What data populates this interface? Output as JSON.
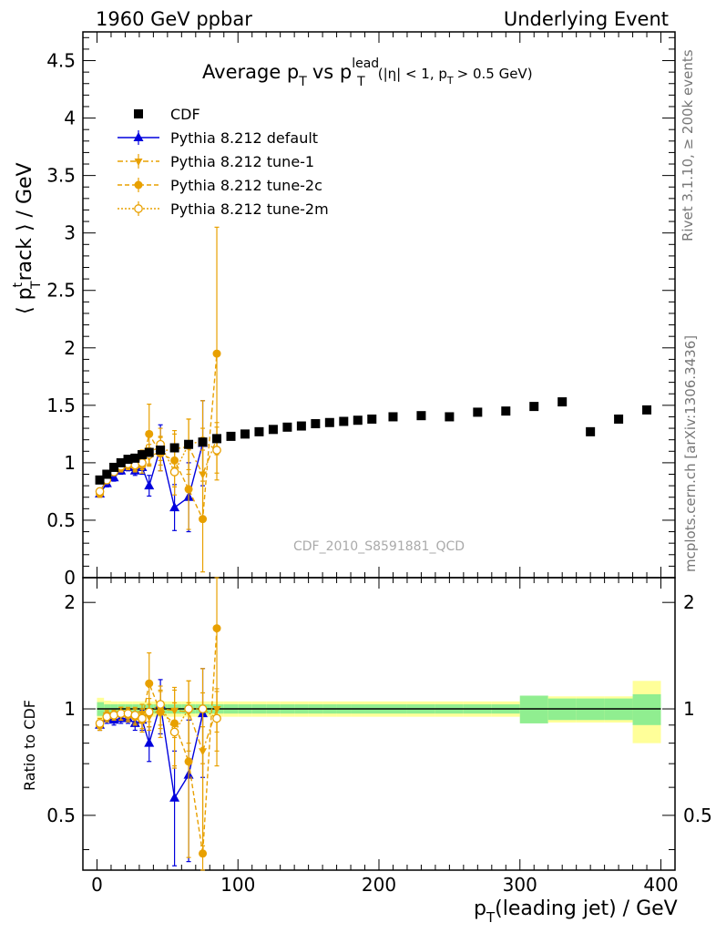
{
  "header": {
    "left": "1960 GeV ppbar",
    "right": "Underlying Event"
  },
  "side": {
    "rivet": "Rivet 3.1.10, ≥ 200k events",
    "mcplots": "mcplots.cern.ch [arXiv:1306.3436]"
  },
  "colors": {
    "data": "#000000",
    "default": "#0000dd",
    "tune": "#e8a000",
    "band_inner": "#90ee90",
    "band_outer": "#ffff99"
  },
  "chart_data": [
    {
      "type": "scatter",
      "title_parts": {
        "main": "Average p",
        "sub1": "T",
        "vs": "vs p",
        "sup": "lead",
        "sub2": "T",
        "cut1": "(|η| < 1, p",
        "sub3": "T",
        "cut2": "> 0.5 GeV)"
      },
      "ylabel_parts": {
        "open": "⟨ p",
        "sup": "t",
        "sub": "T",
        "rest": "rack ⟩ / GeV"
      },
      "watermark": "CDF_2010_S8591881_QCD",
      "xlim": [
        -10,
        410
      ],
      "ylim": [
        0,
        4.75
      ],
      "yticks": [
        "0",
        "0.5",
        "1",
        "1.5",
        "2",
        "2.5",
        "3",
        "3.5",
        "4",
        "4.5"
      ],
      "legend": [
        "CDF",
        "Pythia 8.212 default",
        "Pythia 8.212 tune-1",
        "Pythia 8.212 tune-2c",
        "Pythia 8.212 tune-2m"
      ],
      "series": [
        {
          "name": "CDF",
          "style": "square",
          "x": [
            2,
            7,
            12,
            17,
            22,
            27,
            32,
            37,
            45,
            55,
            65,
            75,
            85,
            95,
            105,
            115,
            125,
            135,
            145,
            155,
            165,
            175,
            185,
            195,
            210,
            230,
            250,
            270,
            290,
            310,
            330,
            350,
            370,
            390
          ],
          "y": [
            0.85,
            0.9,
            0.96,
            1.0,
            1.03,
            1.04,
            1.07,
            1.09,
            1.11,
            1.13,
            1.16,
            1.18,
            1.21,
            1.23,
            1.25,
            1.27,
            1.29,
            1.31,
            1.32,
            1.34,
            1.35,
            1.36,
            1.37,
            1.38,
            1.4,
            1.41,
            1.4,
            1.44,
            1.45,
            1.49,
            1.53,
            1.27,
            1.38,
            1.46
          ]
        },
        {
          "name": "Pythia 8.212 default",
          "style": "triangle-up",
          "x": [
            2,
            7,
            12,
            17,
            22,
            27,
            32,
            37,
            45,
            55,
            65,
            75
          ],
          "y": [
            0.73,
            0.82,
            0.87,
            0.93,
            0.96,
            0.93,
            0.96,
            0.8,
            1.13,
            0.61,
            0.7,
            1.17
          ],
          "err": [
            0.03,
            0.03,
            0.03,
            0.03,
            0.03,
            0.04,
            0.06,
            0.09,
            0.2,
            0.2,
            0.3,
            0.37
          ]
        },
        {
          "name": "Pythia 8.212 tune-1",
          "style": "triangle-down",
          "x": [
            2,
            7,
            12,
            17,
            22,
            27,
            32,
            37,
            45,
            55,
            65,
            75,
            85
          ],
          "y": [
            0.74,
            0.85,
            0.93,
            0.97,
            0.98,
            0.98,
            1.05,
            1.05,
            1.1,
            1.12,
            1.14,
            0.9,
            1.21
          ],
          "err": [
            0.03,
            0.03,
            0.03,
            0.04,
            0.04,
            0.05,
            0.06,
            0.08,
            0.12,
            0.16,
            0.24,
            0.4,
            0.14
          ]
        },
        {
          "name": "Pythia 8.212 tune-2c",
          "style": "circle-filled",
          "x": [
            2,
            7,
            12,
            17,
            22,
            27,
            32,
            37,
            45,
            55,
            65,
            75,
            85
          ],
          "y": [
            0.73,
            0.86,
            0.92,
            0.96,
            0.98,
            0.97,
            0.98,
            1.25,
            1.08,
            1.02,
            0.77,
            0.51,
            1.95
          ],
          "err": [
            0.03,
            0.03,
            0.03,
            0.04,
            0.04,
            0.05,
            0.07,
            0.26,
            0.15,
            0.23,
            0.35,
            0.6,
            1.1
          ]
        },
        {
          "name": "Pythia 8.212 tune-2m",
          "style": "circle-open",
          "x": [
            2,
            7,
            12,
            17,
            22,
            27,
            32,
            37,
            45,
            55,
            65,
            75,
            85
          ],
          "y": [
            0.75,
            0.85,
            0.92,
            0.97,
            0.99,
            0.98,
            1.0,
            1.07,
            1.16,
            0.92,
            1.16,
            1.19,
            1.11
          ],
          "err": [
            0.03,
            0.03,
            0.03,
            0.04,
            0.04,
            0.05,
            0.06,
            0.09,
            0.14,
            0.2,
            0.22,
            0.35,
            0.2
          ]
        }
      ]
    },
    {
      "type": "scatter",
      "ylabel": "Ratio to CDF",
      "xlabel_parts": {
        "main": "p",
        "sub": "T",
        "rest": "(leading jet) / GeV"
      },
      "xlim": [
        -10,
        410
      ],
      "ylim": [
        0.35,
        2.35
      ],
      "yticks": [
        "0.5",
        "1",
        "2"
      ],
      "xticks": [
        "0",
        "100",
        "200",
        "300",
        "400"
      ],
      "bands": {
        "x_edges": [
          0,
          5,
          10,
          15,
          20,
          25,
          30,
          35,
          40,
          50,
          60,
          70,
          80,
          90,
          100,
          110,
          120,
          130,
          140,
          150,
          160,
          170,
          180,
          190,
          200,
          220,
          240,
          260,
          280,
          300,
          320,
          340,
          360,
          380,
          400
        ],
        "inner": [
          0.045,
          0.03,
          0.03,
          0.03,
          0.03,
          0.03,
          0.03,
          0.03,
          0.03,
          0.03,
          0.03,
          0.03,
          0.03,
          0.03,
          0.03,
          0.03,
          0.03,
          0.03,
          0.03,
          0.03,
          0.03,
          0.03,
          0.03,
          0.03,
          0.03,
          0.03,
          0.03,
          0.03,
          0.03,
          0.09,
          0.07,
          0.07,
          0.07,
          0.1
        ],
        "outer": [
          0.075,
          0.055,
          0.05,
          0.05,
          0.05,
          0.05,
          0.05,
          0.05,
          0.05,
          0.05,
          0.05,
          0.05,
          0.05,
          0.05,
          0.05,
          0.05,
          0.05,
          0.05,
          0.05,
          0.05,
          0.05,
          0.05,
          0.05,
          0.05,
          0.05,
          0.05,
          0.05,
          0.05,
          0.05,
          0.085,
          0.085,
          0.085,
          0.085,
          0.2
        ]
      },
      "series": [
        {
          "name": "Pythia 8.212 default",
          "style": "triangle-up",
          "x": [
            2,
            7,
            12,
            17,
            22,
            27,
            32,
            37,
            45,
            55,
            65,
            75
          ],
          "y": [
            0.9,
            0.94,
            0.93,
            0.94,
            0.94,
            0.91,
            0.93,
            0.8,
            1.03,
            0.56,
            0.65,
            0.97
          ],
          "err": [
            0.03,
            0.03,
            0.03,
            0.03,
            0.03,
            0.04,
            0.06,
            0.09,
            0.18,
            0.2,
            0.28,
            0.33
          ]
        },
        {
          "name": "Pythia 8.212 tune-1",
          "style": "triangle-down",
          "x": [
            2,
            7,
            12,
            17,
            22,
            27,
            32,
            37,
            45,
            55,
            65,
            75,
            85
          ],
          "y": [
            0.9,
            0.96,
            0.96,
            0.97,
            0.96,
            0.95,
            0.97,
            0.95,
            1.0,
            0.99,
            0.98,
            0.76,
            1.0
          ],
          "err": [
            0.03,
            0.03,
            0.03,
            0.04,
            0.04,
            0.05,
            0.06,
            0.08,
            0.12,
            0.16,
            0.22,
            0.35,
            0.14
          ]
        },
        {
          "name": "Pythia 8.212 tune-2c",
          "style": "circle-filled",
          "x": [
            2,
            7,
            12,
            17,
            22,
            27,
            32,
            37,
            45,
            55,
            65,
            75,
            85
          ],
          "y": [
            0.9,
            0.95,
            0.96,
            0.97,
            0.96,
            0.95,
            0.93,
            1.18,
            0.98,
            0.91,
            0.71,
            0.39,
            1.69
          ],
          "err": [
            0.03,
            0.03,
            0.03,
            0.04,
            0.04,
            0.05,
            0.07,
            0.26,
            0.15,
            0.22,
            0.33,
            0.5,
            1.0
          ]
        },
        {
          "name": "Pythia 8.212 tune-2m",
          "style": "circle-open",
          "x": [
            2,
            7,
            12,
            17,
            22,
            27,
            32,
            37,
            45,
            55,
            65,
            75,
            85
          ],
          "y": [
            0.91,
            0.95,
            0.96,
            0.97,
            0.97,
            0.96,
            0.94,
            0.98,
            1.03,
            0.86,
            1.0,
            1.0,
            0.94
          ],
          "err": [
            0.03,
            0.03,
            0.03,
            0.04,
            0.04,
            0.05,
            0.06,
            0.09,
            0.13,
            0.18,
            0.2,
            0.3,
            0.18
          ]
        }
      ]
    }
  ]
}
